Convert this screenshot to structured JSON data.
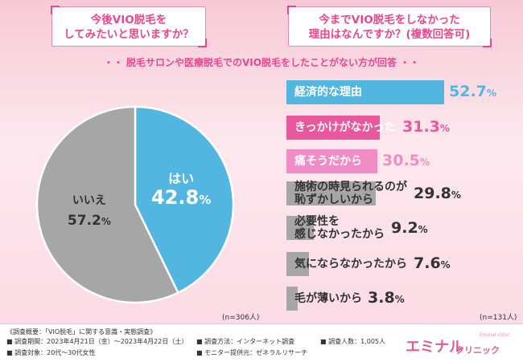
{
  "questions": {
    "left": [
      "今後VIO脱毛を",
      "してみたいと思いますか？"
    ],
    "right": [
      "今までVIO脱毛をしなかった",
      "理由はなんですか？(複数回答可)"
    ]
  },
  "subtitle": "・・ 脱毛サロンや医療脱毛でのVIO脱毛をしたことがない方が回答 ・・",
  "colors": {
    "accent": "#e8478c",
    "blue": "#53b6e0",
    "pink": "#e9579c",
    "light_pink": "#f28cc4",
    "gray": "#a6a6a6",
    "dark_text": "#333333"
  },
  "chart_data": [
    {
      "type": "pie",
      "slices": [
        {
          "label": "はい",
          "value": 42.8,
          "value_label": "42.8",
          "unit": "%",
          "color": "#53b6e0"
        },
        {
          "label": "いいえ",
          "value": 57.2,
          "value_label": "57.2",
          "unit": "%",
          "color": "#a6a6a6"
        }
      ],
      "note": "(n=306人)"
    },
    {
      "type": "bar",
      "orientation": "horizontal",
      "categories": [
        [
          "経済的な理由"
        ],
        [
          "きっかけがなかった"
        ],
        [
          "痛そうだから"
        ],
        [
          "施術の時見られるのが",
          "恥ずかしいから"
        ],
        [
          "必要性を",
          "感じなかったから"
        ],
        [
          "気にならなかったから"
        ],
        [
          "毛が薄いから"
        ]
      ],
      "values": [
        52.7,
        31.3,
        30.5,
        29.8,
        9.2,
        7.6,
        3.8
      ],
      "value_labels": [
        "52.7",
        "31.3",
        "30.5",
        "29.8",
        "9.2",
        "7.6",
        "3.8"
      ],
      "unit": "%",
      "bar_colors": [
        "#53b6e0",
        "#e9579c",
        "#f28cc4",
        "#a6a6a6",
        "#a6a6a6",
        "#a6a6a6",
        "#a6a6a6"
      ],
      "label_colors": [
        "#ffffff",
        "#ffffff",
        "#ffffff",
        "#333333",
        "#333333",
        "#333333",
        "#333333"
      ],
      "value_colors": [
        "#53b6e0",
        "#e9579c",
        "#f28cc4",
        "#333333",
        "#333333",
        "#333333",
        "#333333"
      ],
      "note": "(n=131人)"
    }
  ],
  "footer": {
    "title": "《調査概要：「VIO脱毛」に関する意識・実態調査》",
    "items": [
      "■ 調査期間：2023年4月21日（金）〜2023年4月22日（土）",
      "■ 調査方法：インターネット調査",
      "■ 調査人数：1,005人",
      "■ 調査対象：20代〜30代女性",
      "■ モニター提供元：ゼネラルリサーチ"
    ]
  },
  "brand": {
    "main": "エミナル",
    "sub": "クリニック",
    "tiny": "Eminal clinic"
  }
}
